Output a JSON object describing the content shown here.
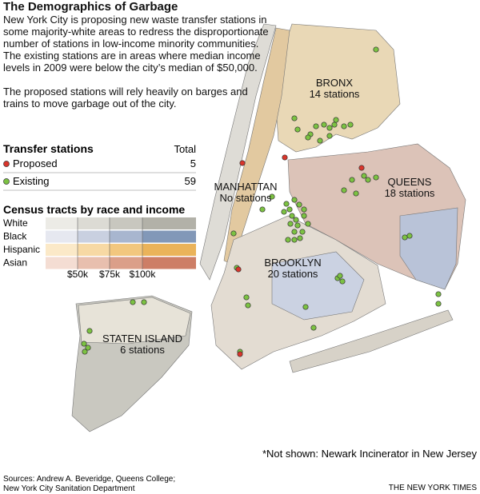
{
  "header": {
    "title": "The Demographics of Garbage"
  },
  "intro": [
    "New York City is proposing new waste transfer stations in some majority-white areas to redress the disproportionate number of stations in low-income minority communities. The existing stations are in areas where median income levels in 2009 were below the city’s median of $50,000.",
    "The proposed stations will rely heavily on barges and trains to move garbage out of the city."
  ],
  "stations_legend": {
    "title": "Transfer stations",
    "total_header": "Total",
    "rows": [
      {
        "label": "Proposed",
        "total": 5,
        "color": "#d9352b"
      },
      {
        "label": "Existing",
        "total": 59,
        "color": "#7cc242"
      }
    ]
  },
  "census_legend": {
    "title": "Census tracts by race and income",
    "rows": [
      {
        "label": "White",
        "colors": [
          "#ecebe6",
          "#dcdbd4",
          "#c8c7bf",
          "#b2b1a8"
        ]
      },
      {
        "label": "Black",
        "colors": [
          "#e6e8f0",
          "#c9d0e0",
          "#a8b6cf",
          "#8298b8"
        ]
      },
      {
        "label": "Hispanic",
        "colors": [
          "#fbe9c8",
          "#f7d9a4",
          "#f2c77e",
          "#eab35a"
        ]
      },
      {
        "label": "Asian",
        "colors": [
          "#f4ddd3",
          "#e8bfae",
          "#db9f89",
          "#cd7e66"
        ]
      }
    ],
    "income_labels": [
      "$50k",
      "$75k",
      "$100k"
    ]
  },
  "boroughs": [
    {
      "name": "BRONX",
      "note": "14 stations"
    },
    {
      "name": "MANHATTAN",
      "note": "No stations"
    },
    {
      "name": "QUEENS",
      "note": "18 stations"
    },
    {
      "name": "BROOKLYN",
      "note": "20 stations"
    },
    {
      "name": "STATEN ISLAND",
      "note": "6 stations"
    }
  ],
  "footnote": "*Not shown: Newark Incinerator in New Jersey",
  "sources": [
    "Sources: Andrew A. Beveridge, Queens College;",
    "New York City Sanitation Department"
  ],
  "credit": "THE NEW YORK TIMES"
}
